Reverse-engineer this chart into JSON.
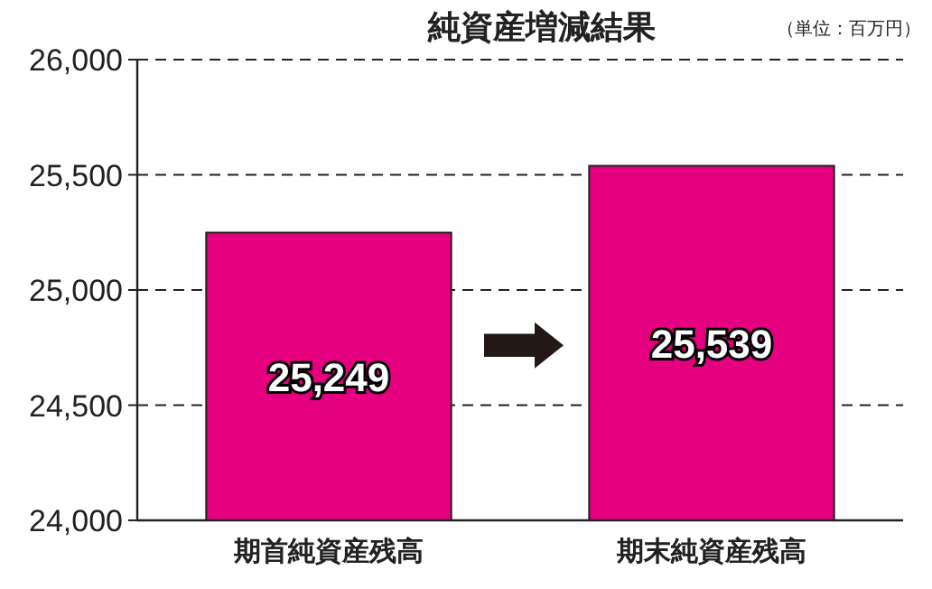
{
  "chart_data": {
    "type": "bar",
    "title": "純資産増減結果",
    "annotations": [
      "（単位：百万円）"
    ],
    "categories": [
      "期首純資産残高",
      "期末純資産残高"
    ],
    "values": [
      25249,
      25539
    ],
    "color": "#e4007f",
    "ylim": [
      24000,
      26000
    ],
    "yticks": [
      {
        "value": 24000,
        "label": "24,000"
      },
      {
        "value": 24500,
        "label": "24,500"
      },
      {
        "value": 25000,
        "label": "25,000"
      },
      {
        "value": 25500,
        "label": "25,500"
      },
      {
        "value": 26000,
        "label": "26,000"
      }
    ],
    "grid": "y",
    "value_labels": [
      "25,249",
      "25,539"
    ]
  }
}
